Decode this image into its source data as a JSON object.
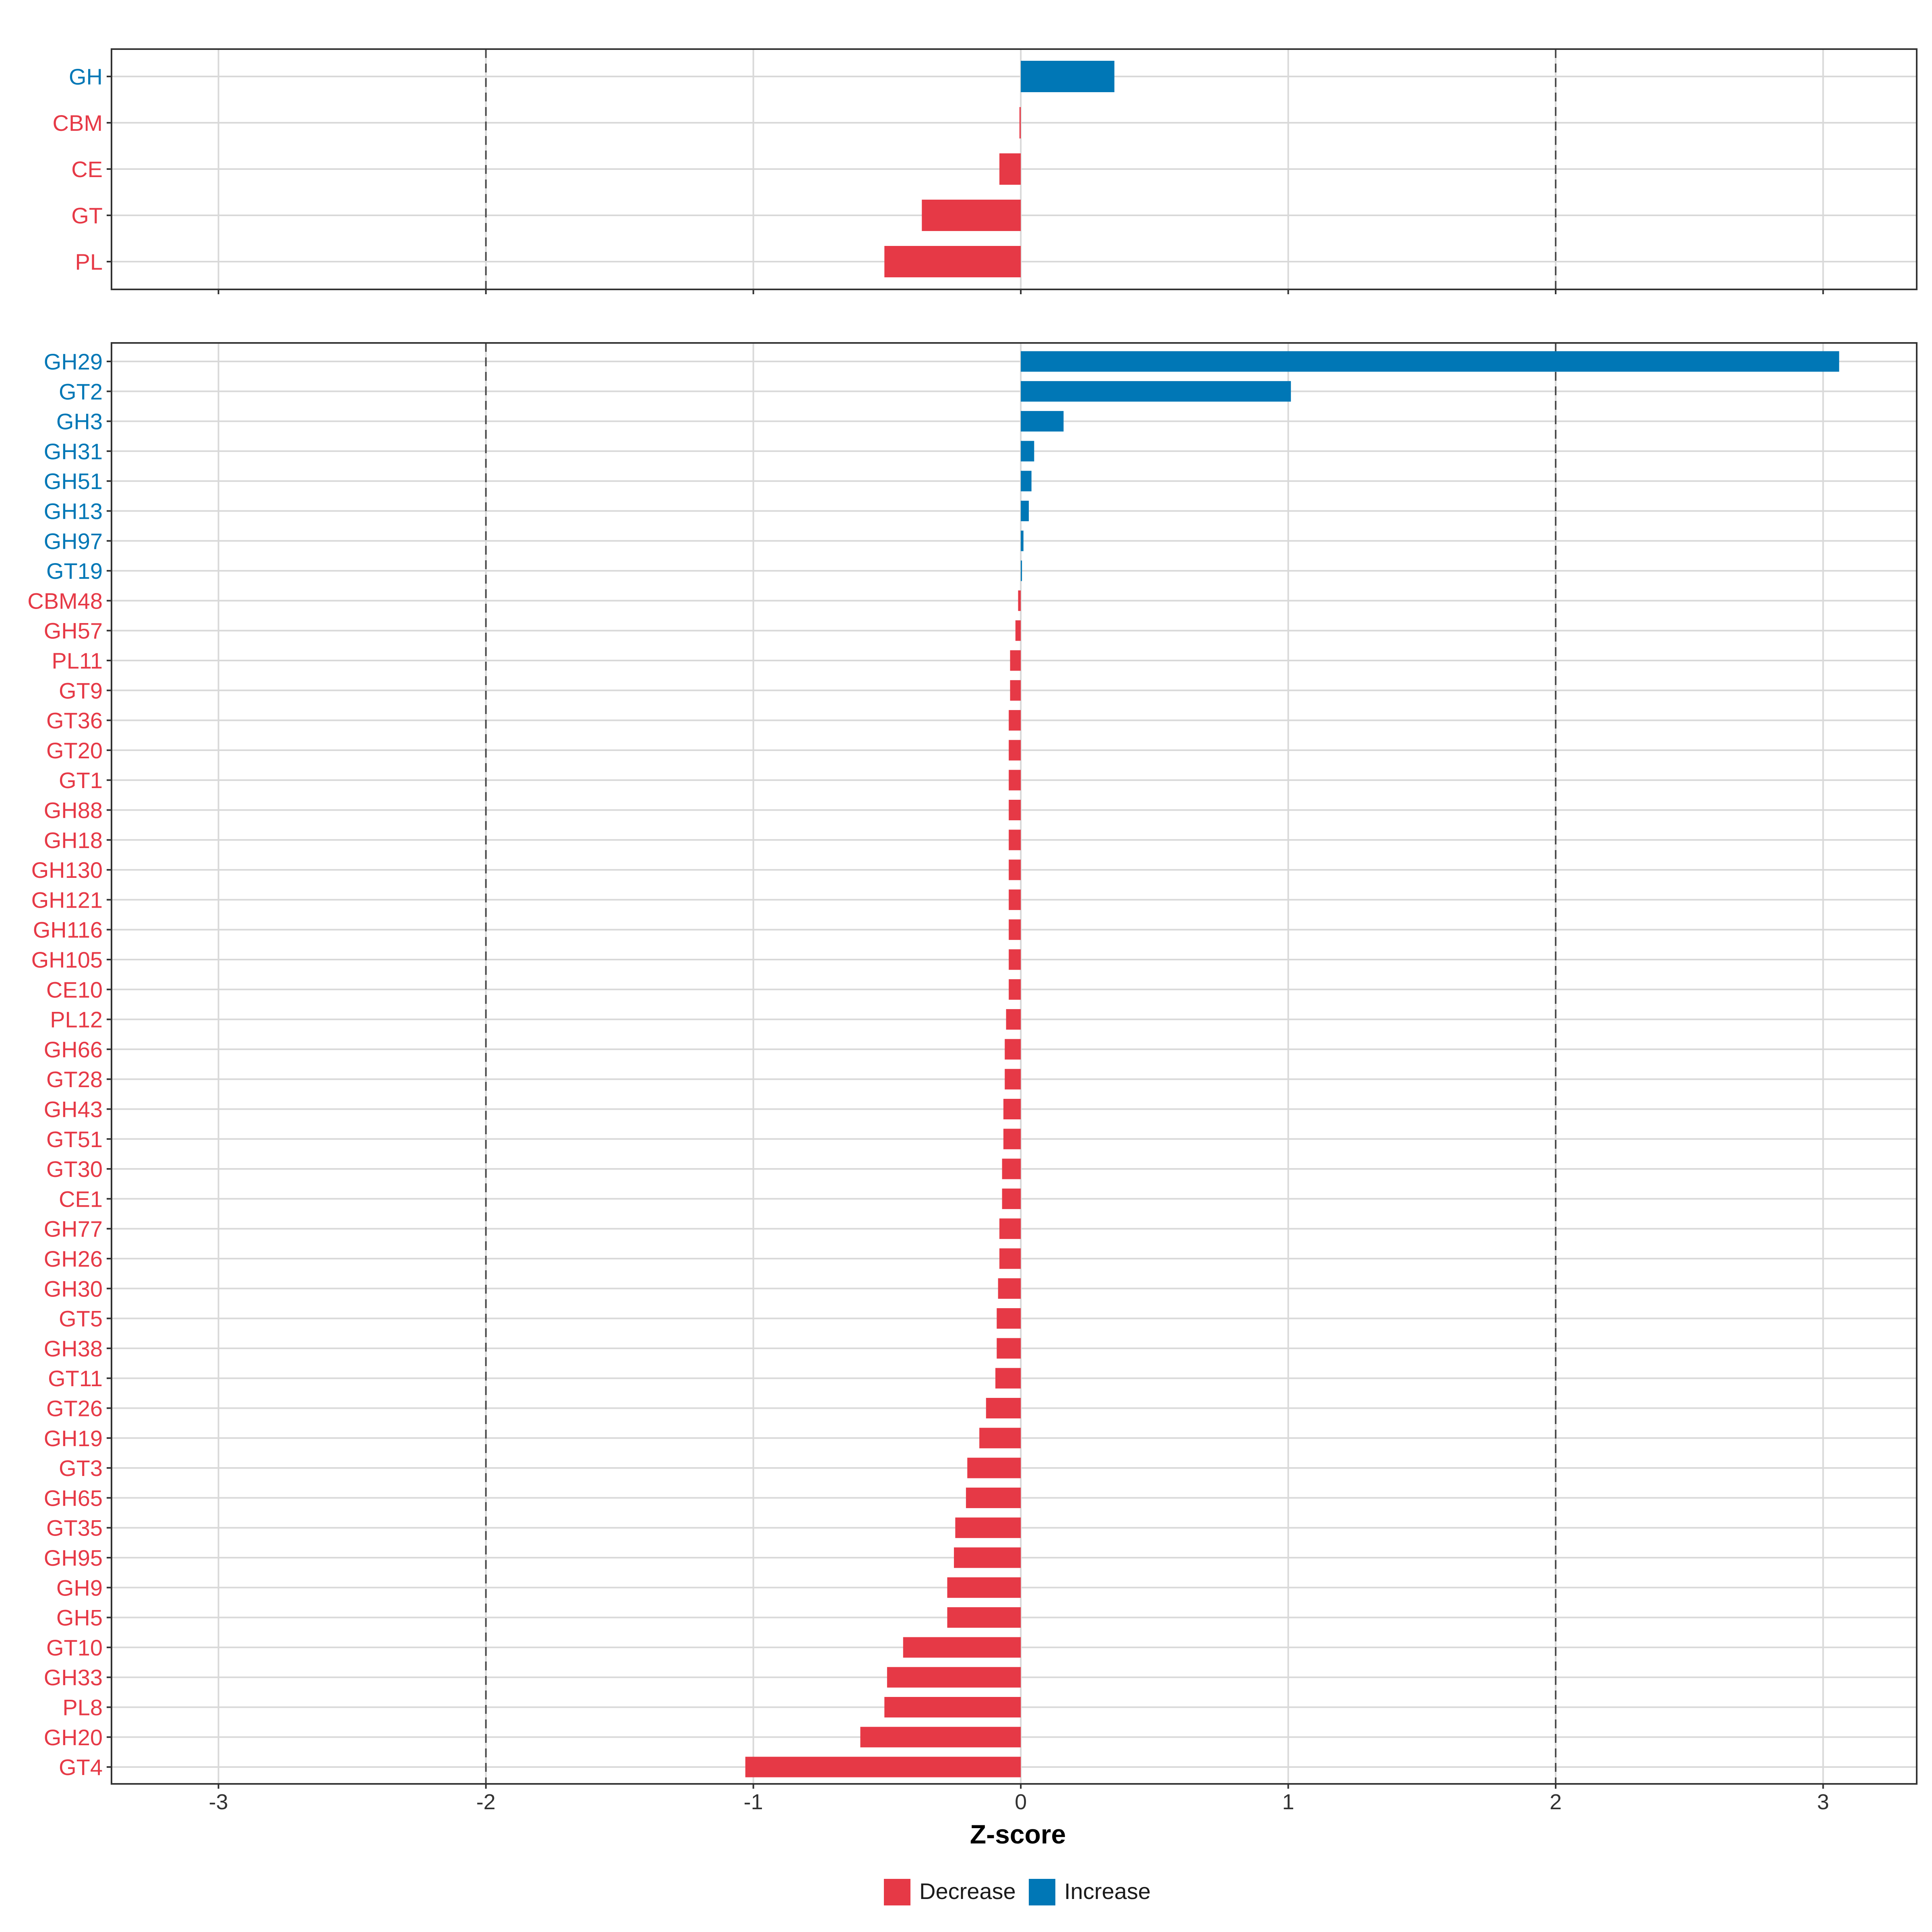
{
  "colors": {
    "decrease": "#E63946",
    "increase": "#0077B6"
  },
  "chart_data": [
    {
      "panel": "class",
      "type": "bar",
      "orientation": "horizontal",
      "categories": [
        "GH",
        "CBM",
        "CE",
        "GT",
        "PL"
      ],
      "values": [
        0.35,
        -0.005,
        -0.08,
        -0.37,
        -0.51
      ],
      "xlim": [
        -3.4,
        3.35
      ],
      "xticks": [
        -3,
        -2,
        -1,
        0,
        1,
        2,
        3
      ],
      "reference_lines": [
        -2,
        2
      ]
    },
    {
      "panel": "family",
      "type": "bar",
      "orientation": "horizontal",
      "categories": [
        "GH29",
        "GT2",
        "GH3",
        "GH31",
        "GH51",
        "GH13",
        "GH97",
        "GT19",
        "CBM48",
        "GH57",
        "PL11",
        "GT9",
        "GT36",
        "GT20",
        "GT1",
        "GH88",
        "GH18",
        "GH130",
        "GH121",
        "GH116",
        "GH105",
        "CE10",
        "PL12",
        "GH66",
        "GT28",
        "GH43",
        "GT51",
        "GT30",
        "CE1",
        "GH77",
        "GH26",
        "GH30",
        "GT5",
        "GH38",
        "GT11",
        "GT26",
        "GH19",
        "GT3",
        "GH65",
        "GT35",
        "GH95",
        "GH9",
        "GH5",
        "GT10",
        "GH33",
        "PL8",
        "GH20",
        "GT4"
      ],
      "values": [
        3.06,
        1.01,
        0.16,
        0.05,
        0.04,
        0.03,
        0.01,
        0.0,
        -0.01,
        -0.02,
        -0.04,
        -0.04,
        -0.045,
        -0.045,
        -0.045,
        -0.045,
        -0.045,
        -0.045,
        -0.045,
        -0.045,
        -0.045,
        -0.045,
        -0.055,
        -0.06,
        -0.06,
        -0.065,
        -0.065,
        -0.07,
        -0.07,
        -0.08,
        -0.08,
        -0.085,
        -0.09,
        -0.09,
        -0.095,
        -0.13,
        -0.155,
        -0.2,
        -0.205,
        -0.245,
        -0.25,
        -0.275,
        -0.275,
        -0.44,
        -0.5,
        -0.51,
        -0.6,
        -1.03
      ],
      "xlim": [
        -3.4,
        3.35
      ],
      "xticks": [
        -3,
        -2,
        -1,
        0,
        1,
        2,
        3
      ],
      "xtick_labels": [
        "-3",
        "-2",
        "-1",
        "0",
        "1",
        "2",
        "3"
      ],
      "reference_lines": [
        -2,
        2
      ],
      "xlabel": "Z-score"
    }
  ],
  "legend": {
    "items": [
      {
        "label": "Decrease",
        "key": "decrease"
      },
      {
        "label": "Increase",
        "key": "increase"
      }
    ]
  }
}
